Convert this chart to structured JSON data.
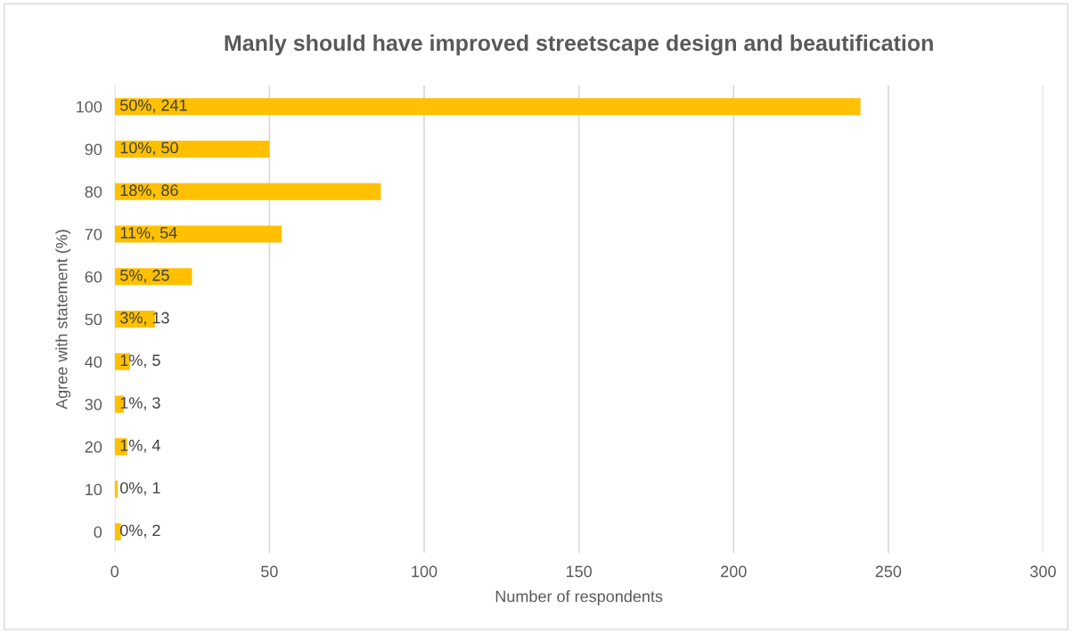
{
  "chart_data": {
    "type": "bar",
    "orientation": "horizontal",
    "title": "Manly should have improved streetscape design and beautification",
    "xlabel": "Number of respondents",
    "ylabel": "Agree with statement (%)",
    "categories": [
      "100",
      "90",
      "80",
      "70",
      "60",
      "50",
      "40",
      "30",
      "20",
      "10",
      "0"
    ],
    "values": [
      241,
      50,
      86,
      54,
      25,
      13,
      5,
      3,
      4,
      1,
      2
    ],
    "value_labels": [
      "50%, 241",
      "10%, 50",
      "18%, 86",
      "11%, 54",
      "5%, 25",
      "3%, 13",
      "1%, 5",
      "1%, 3",
      "1%, 4",
      "0%, 1",
      "0%, 2"
    ],
    "color": "#ffc000",
    "xlim": [
      0,
      300
    ],
    "xticks": [
      0,
      50,
      100,
      150,
      200,
      250,
      300
    ],
    "grid": "x"
  }
}
